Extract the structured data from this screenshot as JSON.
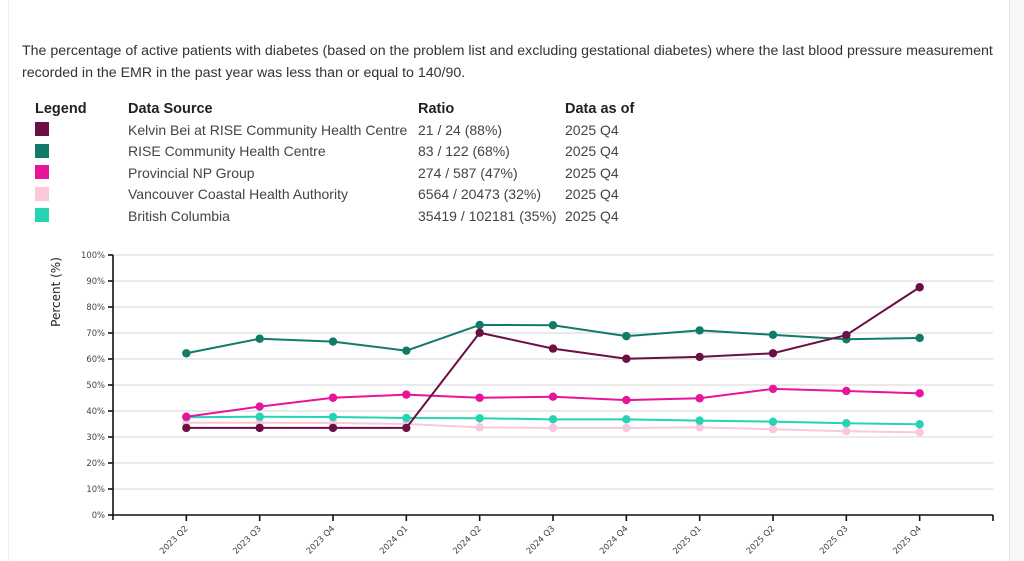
{
  "description": "The percentage of active patients with diabetes (based on the problem list and excluding gestational diabetes) where the last blood pressure measurement recorded in the EMR in the past year was less than or equal to 140/90.",
  "legend_table": {
    "headers": {
      "legend": "Legend",
      "source": "Data Source",
      "ratio": "Ratio",
      "as_of": "Data as of"
    },
    "rows": [
      {
        "color": "#6b0f45",
        "source": "Kelvin Bei at RISE Community Health Centre",
        "ratio": "21 / 24 (88%)",
        "as_of": "2025 Q4"
      },
      {
        "color": "#0f7b68",
        "source": "RISE Community Health Centre",
        "ratio": "83 / 122 (68%)",
        "as_of": "2025 Q4"
      },
      {
        "color": "#e6159a",
        "source": "Provincial NP Group",
        "ratio": "274 / 587 (47%)",
        "as_of": "2025 Q4"
      },
      {
        "color": "#f9c8dc",
        "source": "Vancouver Coastal Health Authority",
        "ratio": "6564 / 20473 (32%)",
        "as_of": "2025 Q4"
      },
      {
        "color": "#27d3b3",
        "source": "British Columbia",
        "ratio": "35419 / 102181 (35%)",
        "as_of": "2025 Q4"
      }
    ]
  },
  "chart_data": {
    "type": "line",
    "title": "",
    "xlabel": "",
    "ylabel": "Percent (%)",
    "ylim": [
      0,
      100
    ],
    "yticks": [
      0,
      10,
      20,
      30,
      40,
      50,
      60,
      70,
      80,
      90,
      100
    ],
    "ytick_suffix": "%",
    "grid": true,
    "categories": [
      "2023 Q2",
      "2023 Q3",
      "2023 Q4",
      "2024 Q1",
      "2024 Q2",
      "2024 Q3",
      "2024 Q4",
      "2025 Q1",
      "2025 Q2",
      "2025 Q3",
      "2025 Q4"
    ],
    "series": [
      {
        "name": "Vancouver Coastal Health Authority",
        "color": "#f9c8dc",
        "values": [
          35.5,
          35.5,
          35.4,
          35.0,
          33.7,
          33.5,
          33.5,
          33.7,
          33.0,
          32.2,
          31.8
        ]
      },
      {
        "name": "British Columbia",
        "color": "#27d3b3",
        "values": [
          37.6,
          37.8,
          37.7,
          37.3,
          37.2,
          36.8,
          36.8,
          36.3,
          35.9,
          35.3,
          34.9
        ]
      },
      {
        "name": "Provincial NP Group",
        "color": "#e6159a",
        "values": [
          37.8,
          41.7,
          45.1,
          46.3,
          45.1,
          45.5,
          44.2,
          44.9,
          48.5,
          47.7,
          46.8
        ]
      },
      {
        "name": "RISE Community Health Centre",
        "color": "#0f7b68",
        "values": [
          62.2,
          67.8,
          66.7,
          63.2,
          73.1,
          73.0,
          68.8,
          71.0,
          69.3,
          67.6,
          68.1
        ]
      },
      {
        "name": "Kelvin Bei at RISE Community Health Centre",
        "color": "#6b0f45",
        "values": [
          33.5,
          33.5,
          33.5,
          33.5,
          70.1,
          64.0,
          60.1,
          60.8,
          62.2,
          69.2,
          87.6
        ]
      }
    ]
  }
}
